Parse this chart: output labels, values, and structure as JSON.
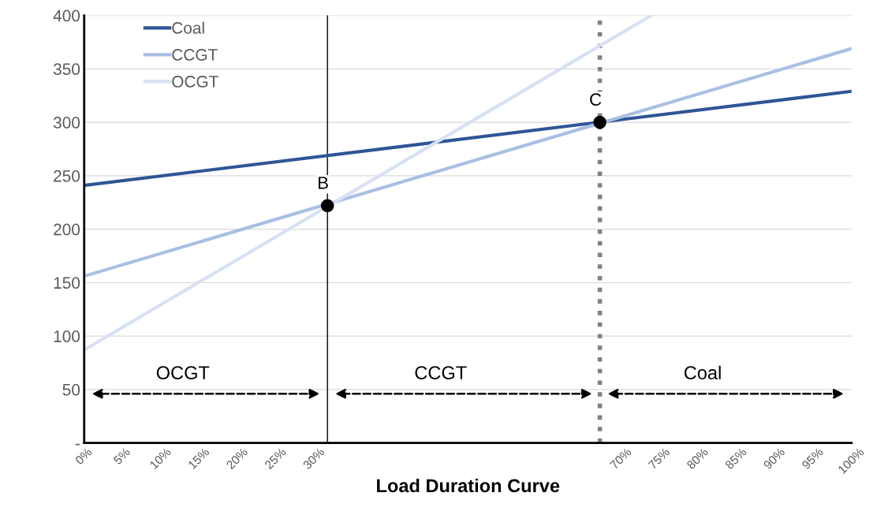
{
  "chart_data": {
    "type": "line",
    "xlabel": "Load Duration Curve",
    "series": [
      {
        "name": "Coal",
        "color": "#2f5597",
        "x": [
          0,
          100
        ],
        "values": [
          241,
          329
        ]
      },
      {
        "name": "CCGT",
        "color": "#a9bfe3",
        "x": [
          0,
          100
        ],
        "values": [
          156,
          369
        ]
      },
      {
        "name": "OCGT",
        "color": "#d6e1f2",
        "x": [
          0,
          73.9
        ],
        "values": [
          87,
          400
        ]
      },
      {
        "type": "scatter",
        "marker": "circle",
        "color": "#000000",
        "x": [
          31.7,
          67.2
        ],
        "values": [
          222,
          300
        ]
      }
    ],
    "xlim": [
      0,
      100
    ],
    "xticks": [
      {
        "value": 0,
        "label": "0%"
      },
      {
        "value": 5,
        "label": "5%"
      },
      {
        "value": 10,
        "label": "10%"
      },
      {
        "value": 15,
        "label": "15%"
      },
      {
        "value": 20,
        "label": "20%"
      },
      {
        "value": 25,
        "label": "25%"
      },
      {
        "value": 30,
        "label": "30%"
      },
      {
        "value": 70,
        "label": "70%"
      },
      {
        "value": 75,
        "label": "75%"
      },
      {
        "value": 80,
        "label": "80%"
      },
      {
        "value": 85,
        "label": "85%"
      },
      {
        "value": 90,
        "label": "90%"
      },
      {
        "value": 95,
        "label": "95%"
      },
      {
        "value": 100,
        "label": "100%"
      }
    ],
    "ylim": [
      0,
      400
    ],
    "yticks": [
      {
        "value": 0,
        "label": "-"
      },
      50,
      100,
      150,
      200,
      250,
      300,
      350,
      400
    ],
    "ref_lines": [
      {
        "axis": "x",
        "value": 31.7,
        "color": "#000000",
        "line_style": "solid"
      },
      {
        "axis": "x",
        "value": 67.2,
        "color": "#808080",
        "line_style": "dotted"
      }
    ],
    "annotations": [
      {
        "text": "B",
        "x": 31.7,
        "y": 222
      },
      {
        "text": "C",
        "x": 67.2,
        "y": 300
      },
      "OCGT",
      "CCGT",
      "Coal"
    ],
    "grid": "y",
    "legend": "top left",
    "marker": "none",
    "line_style": "solid"
  }
}
